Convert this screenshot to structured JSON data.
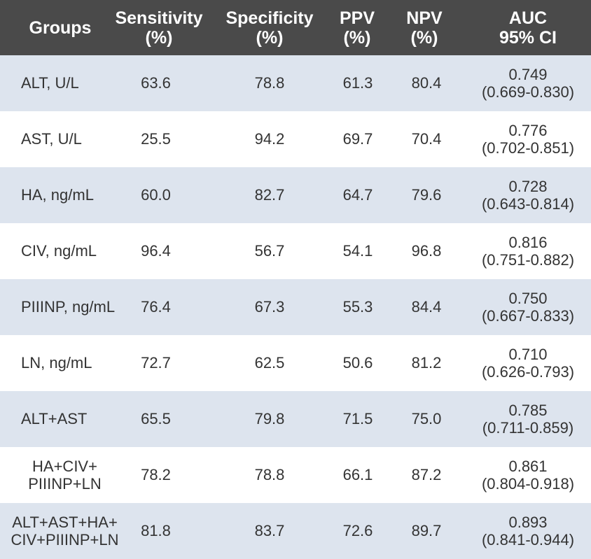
{
  "header": {
    "groups": "Groups",
    "sensitivity": "Sensitivity\n(%)",
    "specificity": "Specificity\n(%)",
    "ppv": "PPV\n(%)",
    "npv": "NPV\n(%)",
    "auc": "AUC\n95% CI"
  },
  "rows": [
    {
      "group": "ALT, U/L",
      "sensitivity": "63.6",
      "specificity": "78.8",
      "ppv": "61.3",
      "npv": "80.4",
      "auc": "0.749\n(0.669-0.830)"
    },
    {
      "group": "AST, U/L",
      "sensitivity": "25.5",
      "specificity": "94.2",
      "ppv": "69.7",
      "npv": "70.4",
      "auc": "0.776\n(0.702-0.851)"
    },
    {
      "group": "HA, ng/mL",
      "sensitivity": "60.0",
      "specificity": "82.7",
      "ppv": "64.7",
      "npv": "79.6",
      "auc": "0.728\n(0.643-0.814)"
    },
    {
      "group": "CIV, ng/mL",
      "sensitivity": "96.4",
      "specificity": "56.7",
      "ppv": "54.1",
      "npv": "96.8",
      "auc": "0.816\n(0.751-0.882)"
    },
    {
      "group": "PIIINP, ng/mL",
      "sensitivity": "76.4",
      "specificity": "67.3",
      "ppv": "55.3",
      "npv": "84.4",
      "auc": "0.750\n(0.667-0.833)"
    },
    {
      "group": "LN, ng/mL",
      "sensitivity": "72.7",
      "specificity": "62.5",
      "ppv": "50.6",
      "npv": "81.2",
      "auc": "0.710\n(0.626-0.793)"
    },
    {
      "group": "ALT+AST",
      "sensitivity": "65.5",
      "specificity": "79.8",
      "ppv": "71.5",
      "npv": "75.0",
      "auc": "0.785\n(0.711-0.859)"
    },
    {
      "group": "HA+CIV+\nPIIINP+LN",
      "sensitivity": "78.2",
      "specificity": "78.8",
      "ppv": "66.1",
      "npv": "87.2",
      "auc": "0.861\n(0.804-0.918)"
    },
    {
      "group": "ALT+AST+HA+\nCIV+PIIINP+LN",
      "sensitivity": "81.8",
      "specificity": "83.7",
      "ppv": "72.6",
      "npv": "89.7",
      "auc": "0.893\n(0.841-0.944)"
    }
  ],
  "colors": {
    "header_bg": "#4a4a4a",
    "header_text": "#ffffff",
    "row_shaded": "#dde4ee",
    "row_plain": "#ffffff",
    "body_text": "#333333"
  }
}
